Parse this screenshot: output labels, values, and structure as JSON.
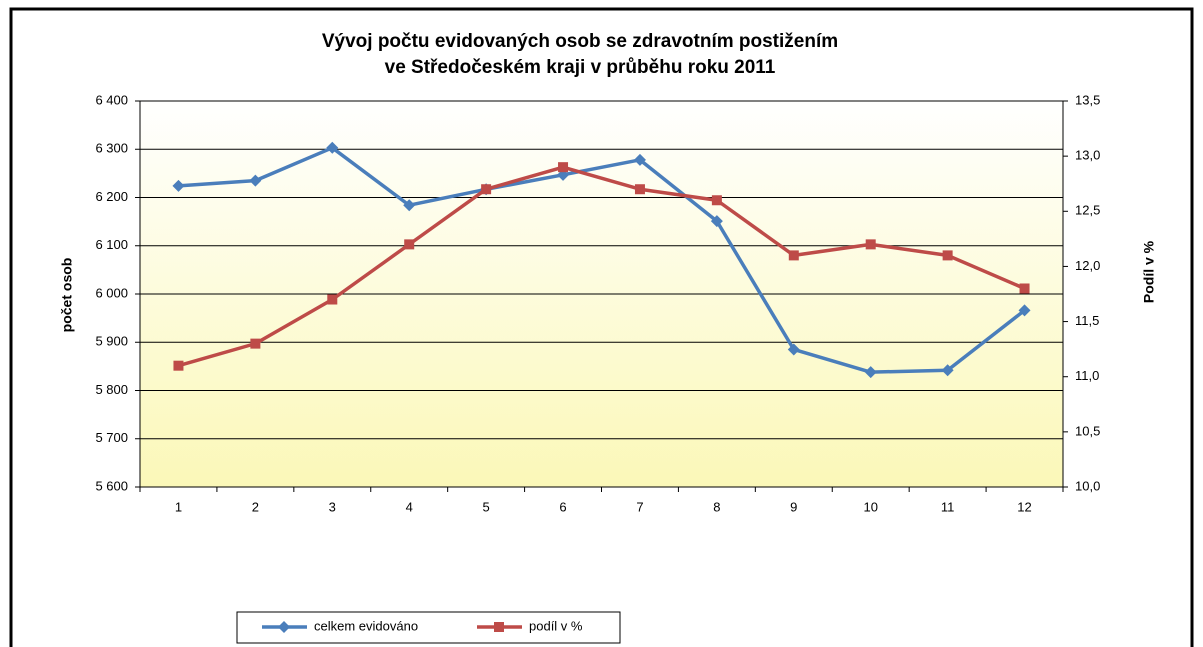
{
  "chart_data": {
    "type": "line",
    "title": [
      "Vývoj počtu evidovaných osob se zdravotním postižením",
      "ve Středočeském kraji v průběhu roku 2011"
    ],
    "ylabel": "počet osob",
    "y2label": "Podíl v %",
    "categories": [
      "1",
      "2",
      "3",
      "4",
      "5",
      "6",
      "7",
      "8",
      "9",
      "10",
      "11",
      "12"
    ],
    "series": [
      {
        "name": "celkem evidováno",
        "color": "#4a7ebb",
        "marker": "diamond",
        "axis": "y",
        "values": [
          6224,
          6235,
          6303,
          6184,
          6217,
          6247,
          6278,
          6151,
          5885,
          5838,
          5842,
          5966
        ]
      },
      {
        "name": "podíl v %",
        "color": "#be4b48",
        "marker": "square",
        "axis": "y2",
        "values": [
          11.1,
          11.3,
          11.7,
          12.2,
          12.7,
          12.9,
          12.7,
          12.6,
          12.1,
          12.2,
          12.1,
          11.8
        ]
      }
    ],
    "ylim": [
      5600,
      6400
    ],
    "yticks": [
      {
        "value": 5600,
        "label": "5 600"
      },
      {
        "value": 5700,
        "label": "5 700"
      },
      {
        "value": 5800,
        "label": "5 800"
      },
      {
        "value": 5900,
        "label": "5 900"
      },
      {
        "value": 6000,
        "label": "6 000"
      },
      {
        "value": 6100,
        "label": "6 100"
      },
      {
        "value": 6200,
        "label": "6 200"
      },
      {
        "value": 6300,
        "label": "6 300"
      },
      {
        "value": 6400,
        "label": "6 400"
      }
    ],
    "y2lim": [
      10.0,
      13.5
    ],
    "y2ticks": [
      {
        "value": 10.0,
        "label": "10,0"
      },
      {
        "value": 10.5,
        "label": "10,5"
      },
      {
        "value": 11.0,
        "label": "11,0"
      },
      {
        "value": 11.5,
        "label": "11,5"
      },
      {
        "value": 12.0,
        "label": "12,0"
      },
      {
        "value": 12.5,
        "label": "12,5"
      },
      {
        "value": 13.0,
        "label": "13,0"
      },
      {
        "value": 13.5,
        "label": "13,5"
      }
    ],
    "grid": true,
    "legend": "bottom"
  }
}
